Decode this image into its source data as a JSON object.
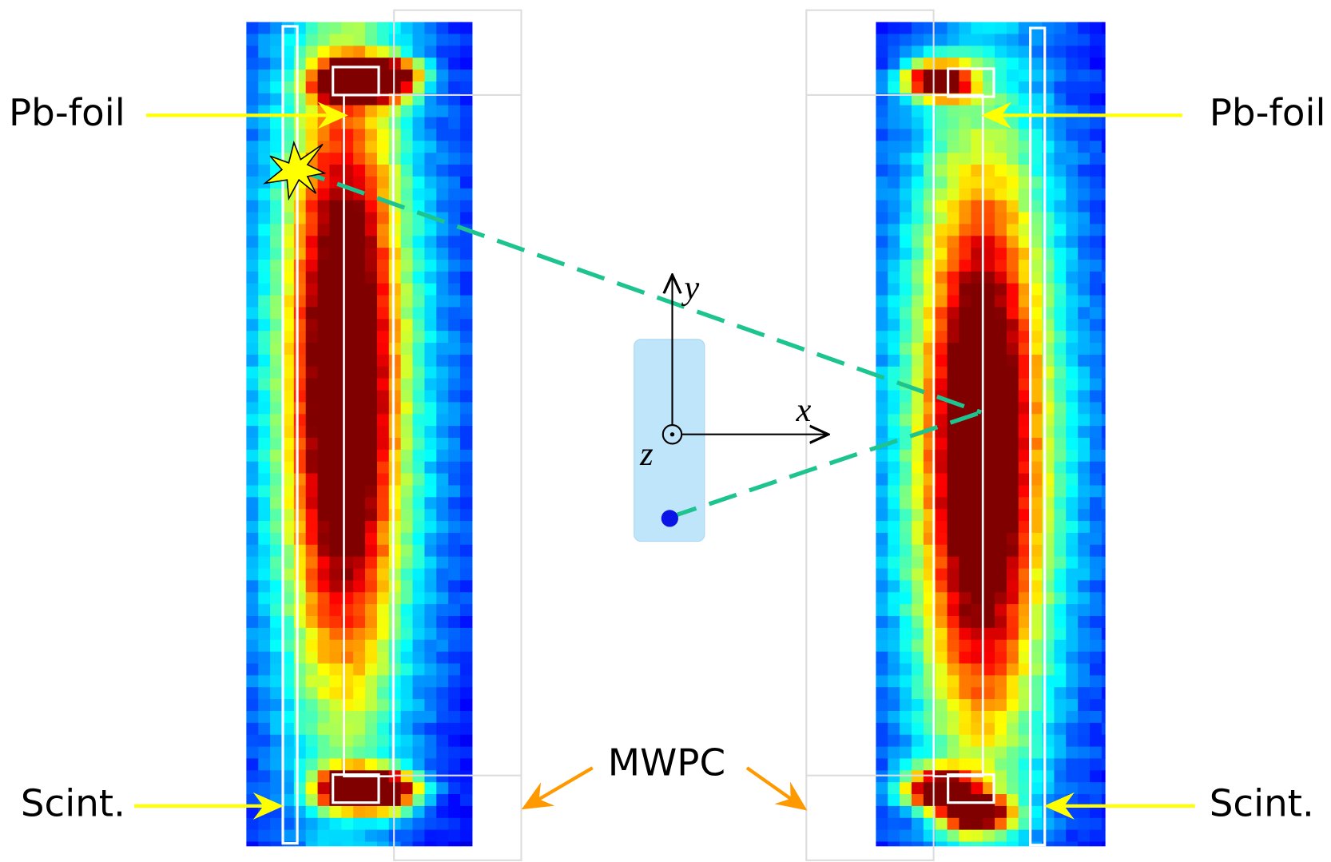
{
  "labels": {
    "pb_foil_left": "Pb-foil",
    "pb_foil_right": "Pb-foil",
    "scint_left": "Scint.",
    "scint_right": "Scint.",
    "mwpc": "MWPC"
  },
  "axes": {
    "y": "y",
    "x": "x",
    "z": "z"
  }
}
